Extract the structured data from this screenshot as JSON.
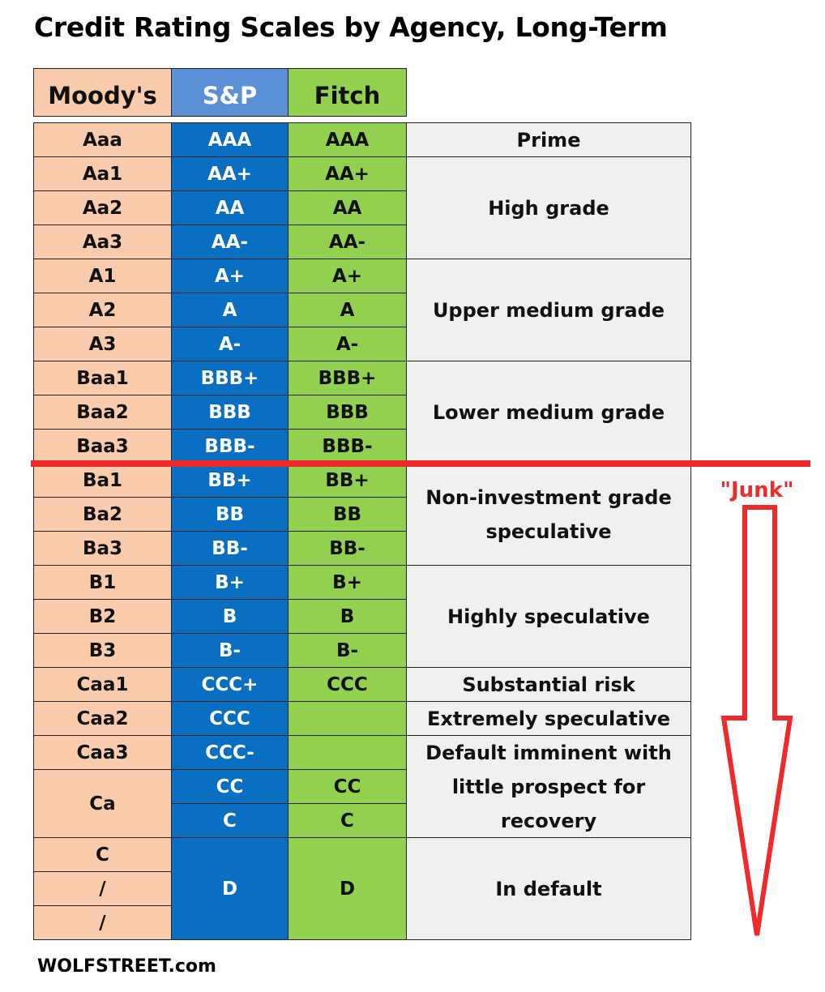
{
  "chart_data": {
    "type": "table",
    "title": "Credit Rating Scales by Agency, Long-Term",
    "headers": [
      "Moody's",
      "S&P",
      "Fitch"
    ],
    "rows": [
      {
        "moodys": "Aaa",
        "sp": "AAA",
        "fitch": "AAA"
      },
      {
        "moodys": "Aa1",
        "sp": "AA+",
        "fitch": "AA+"
      },
      {
        "moodys": "Aa2",
        "sp": "AA",
        "fitch": "AA"
      },
      {
        "moodys": "Aa3",
        "sp": "AA-",
        "fitch": "AA-"
      },
      {
        "moodys": "A1",
        "sp": "A+",
        "fitch": "A+"
      },
      {
        "moodys": "A2",
        "sp": "A",
        "fitch": "A"
      },
      {
        "moodys": "A3",
        "sp": "A-",
        "fitch": "A-"
      },
      {
        "moodys": "Baa1",
        "sp": "BBB+",
        "fitch": "BBB+"
      },
      {
        "moodys": "Baa2",
        "sp": "BBB",
        "fitch": "BBB"
      },
      {
        "moodys": "Baa3",
        "sp": "BBB-",
        "fitch": "BBB-"
      },
      {
        "moodys": "Ba1",
        "sp": "BB+",
        "fitch": "BB+"
      },
      {
        "moodys": "Ba2",
        "sp": "BB",
        "fitch": "BB"
      },
      {
        "moodys": "Ba3",
        "sp": "BB-",
        "fitch": "BB-"
      },
      {
        "moodys": "B1",
        "sp": "B+",
        "fitch": "B+"
      },
      {
        "moodys": "B2",
        "sp": "B",
        "fitch": "B"
      },
      {
        "moodys": "B3",
        "sp": "B-",
        "fitch": "B-"
      },
      {
        "moodys": "Caa1",
        "sp": "CCC+",
        "fitch": "CCC"
      },
      {
        "moodys": "Caa2",
        "sp": "CCC",
        "fitch": ""
      },
      {
        "moodys": "Caa3",
        "sp": "CCC-",
        "fitch": ""
      },
      {
        "moodys": "Ca",
        "sp": "CC",
        "fitch": "CC"
      },
      {
        "moodys": "Ca",
        "sp": "C",
        "fitch": "C"
      },
      {
        "moodys": "C",
        "sp": "D",
        "fitch": "D"
      },
      {
        "moodys": "/",
        "sp": "D",
        "fitch": "D"
      },
      {
        "moodys": "/",
        "sp": "D",
        "fitch": "D"
      }
    ],
    "descriptions": [
      {
        "label": "Prime",
        "rows": [
          0,
          0
        ]
      },
      {
        "label": "High grade",
        "rows": [
          1,
          3
        ]
      },
      {
        "label": "Upper medium grade",
        "rows": [
          4,
          6
        ]
      },
      {
        "label": "Lower medium grade",
        "rows": [
          7,
          9
        ]
      },
      {
        "label": "Non-investment grade speculative",
        "rows": [
          10,
          12
        ]
      },
      {
        "label": "Highly speculative",
        "rows": [
          13,
          15
        ]
      },
      {
        "label": "Substantial risk",
        "rows": [
          16,
          16
        ]
      },
      {
        "label": "Extremely speculative",
        "rows": [
          17,
          17
        ]
      },
      {
        "label": "Default imminent with little prospect for recovery",
        "rows": [
          18,
          20
        ]
      },
      {
        "label": "In default",
        "rows": [
          21,
          23
        ]
      }
    ],
    "junk_label": "\"Junk\"",
    "junk_boundary_after_row": 9,
    "colors": {
      "moodys": "#f8cbad",
      "sp_header": "#5b8fd6",
      "sp": "#0a6fc2",
      "fitch": "#92d050",
      "description": "#f0f0f0",
      "junk": "#ee2a2a"
    }
  },
  "footer": "WOLFSTREET.com"
}
